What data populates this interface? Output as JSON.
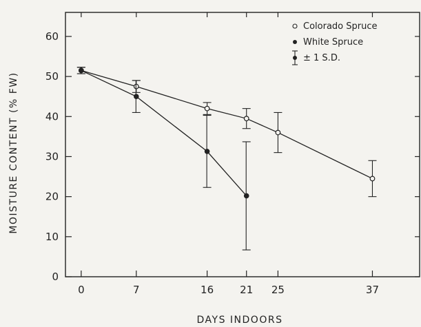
{
  "chart_data": {
    "type": "line",
    "xlabel": "DAYS INDOORS",
    "ylabel": "MOISTURE CONTENT (% FW)",
    "xlim": [
      -2,
      43
    ],
    "ylim": [
      0,
      66
    ],
    "xticks": [
      0,
      7,
      16,
      21,
      25,
      37
    ],
    "yticks": [
      0,
      10,
      20,
      30,
      40,
      50,
      60
    ],
    "legend_position": "top-right",
    "grid": false,
    "series": [
      {
        "name": "Colorado Spruce",
        "marker": "open-circle",
        "x": [
          0,
          7,
          16,
          21,
          25,
          37
        ],
        "y": [
          51.5,
          47.5,
          42,
          39.5,
          36,
          24.5
        ],
        "sd": [
          0.8,
          1.5,
          1.5,
          2.5,
          5,
          4.5
        ]
      },
      {
        "name": "White Spruce",
        "marker": "filled-circle",
        "x": [
          0,
          7,
          16,
          21
        ],
        "y": [
          51.5,
          45,
          31.3,
          20.2
        ],
        "sd": [
          0.8,
          4,
          9,
          13.5
        ]
      }
    ],
    "legend": {
      "items": [
        "Colorado Spruce",
        "White Spruce",
        "± 1 S.D."
      ]
    }
  }
}
